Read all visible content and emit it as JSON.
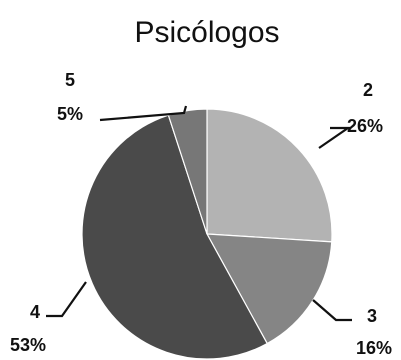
{
  "chart_data": {
    "type": "pie",
    "title": "Psicólogos",
    "slices": [
      {
        "category": "2",
        "value": 26,
        "percent_label": "26%",
        "color": "#b3b3b3"
      },
      {
        "category": "3",
        "value": 16,
        "percent_label": "16%",
        "color": "#858585"
      },
      {
        "category": "4",
        "value": 53,
        "percent_label": "53%",
        "color": "#4a4a4a"
      },
      {
        "category": "5",
        "value": 5,
        "percent_label": "5%",
        "color": "#777777"
      }
    ],
    "start_angle_deg": 0,
    "direction": "clockwise",
    "legend": "none"
  }
}
